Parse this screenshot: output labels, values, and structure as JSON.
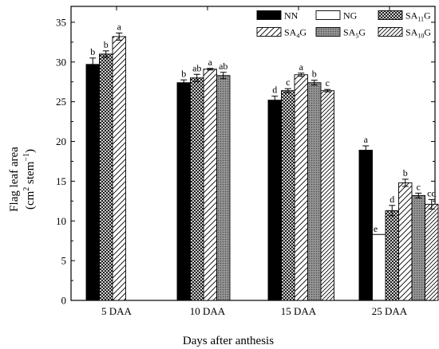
{
  "chart_data": {
    "type": "bar",
    "xlabel": "Days after anthesis",
    "ylabel": {
      "line1": "Flag leaf area",
      "line2_prefix": "(cm",
      "line2_sup1": "2",
      "line2_mid": " stem",
      "line2_sup2": "−1",
      "line2_suffix": ")"
    },
    "ylim": [
      0,
      37
    ],
    "yticks": [
      0,
      5,
      10,
      15,
      20,
      25,
      30,
      35
    ],
    "categories": [
      "5 DAA",
      "10 DAA",
      "15 DAA",
      "25 DAA"
    ],
    "legend_position": "top-right",
    "series": [
      {
        "name": "NN",
        "label_main": "NN",
        "label_sub": "",
        "label_tail": "",
        "pattern": "solid-black",
        "values": [
          29.7,
          27.4,
          25.2,
          18.9
        ],
        "errors": [
          0.8,
          0.35,
          0.5,
          0.55
        ],
        "sig": [
          "b",
          "b",
          "d",
          "a"
        ]
      },
      {
        "name": "NG",
        "label_main": "NG",
        "label_sub": "",
        "label_tail": "",
        "pattern": "white",
        "values": [
          null,
          null,
          null,
          8.3
        ],
        "errors": [
          null,
          null,
          null,
          0.0
        ],
        "sig": [
          null,
          null,
          null,
          "e"
        ]
      },
      {
        "name": "SA11G",
        "label_main": "SA",
        "label_sub": "11",
        "label_tail": "G",
        "pattern": "crosshatch",
        "values": [
          31.0,
          28.0,
          26.4,
          11.3
        ],
        "errors": [
          0.4,
          0.45,
          0.25,
          0.65
        ],
        "sig": [
          "b",
          "ab",
          "c",
          "d"
        ]
      },
      {
        "name": "SA4G",
        "label_main": "SA",
        "label_sub": "4",
        "label_tail": "G",
        "pattern": "diagonal-wide",
        "values": [
          33.2,
          29.1,
          28.4,
          14.8
        ],
        "errors": [
          0.45,
          0.1,
          0.2,
          0.45
        ],
        "sig": [
          "a",
          "a",
          "a",
          "b"
        ]
      },
      {
        "name": "SA5G",
        "label_main": "SA",
        "label_sub": "5",
        "label_tail": "G",
        "pattern": "grey-stipple",
        "values": [
          null,
          28.3,
          27.4,
          13.2
        ],
        "errors": [
          null,
          0.4,
          0.3,
          0.3
        ],
        "sig": [
          null,
          "ab",
          "b",
          "c"
        ]
      },
      {
        "name": "SA10G",
        "label_main": "SA",
        "label_sub": "10",
        "label_tail": "G",
        "pattern": "diagonal-narrow",
        "values": [
          null,
          null,
          26.4,
          12.1
        ],
        "errors": [
          null,
          null,
          0.15,
          0.6
        ],
        "sig": [
          null,
          null,
          "c",
          "cd"
        ]
      }
    ]
  }
}
